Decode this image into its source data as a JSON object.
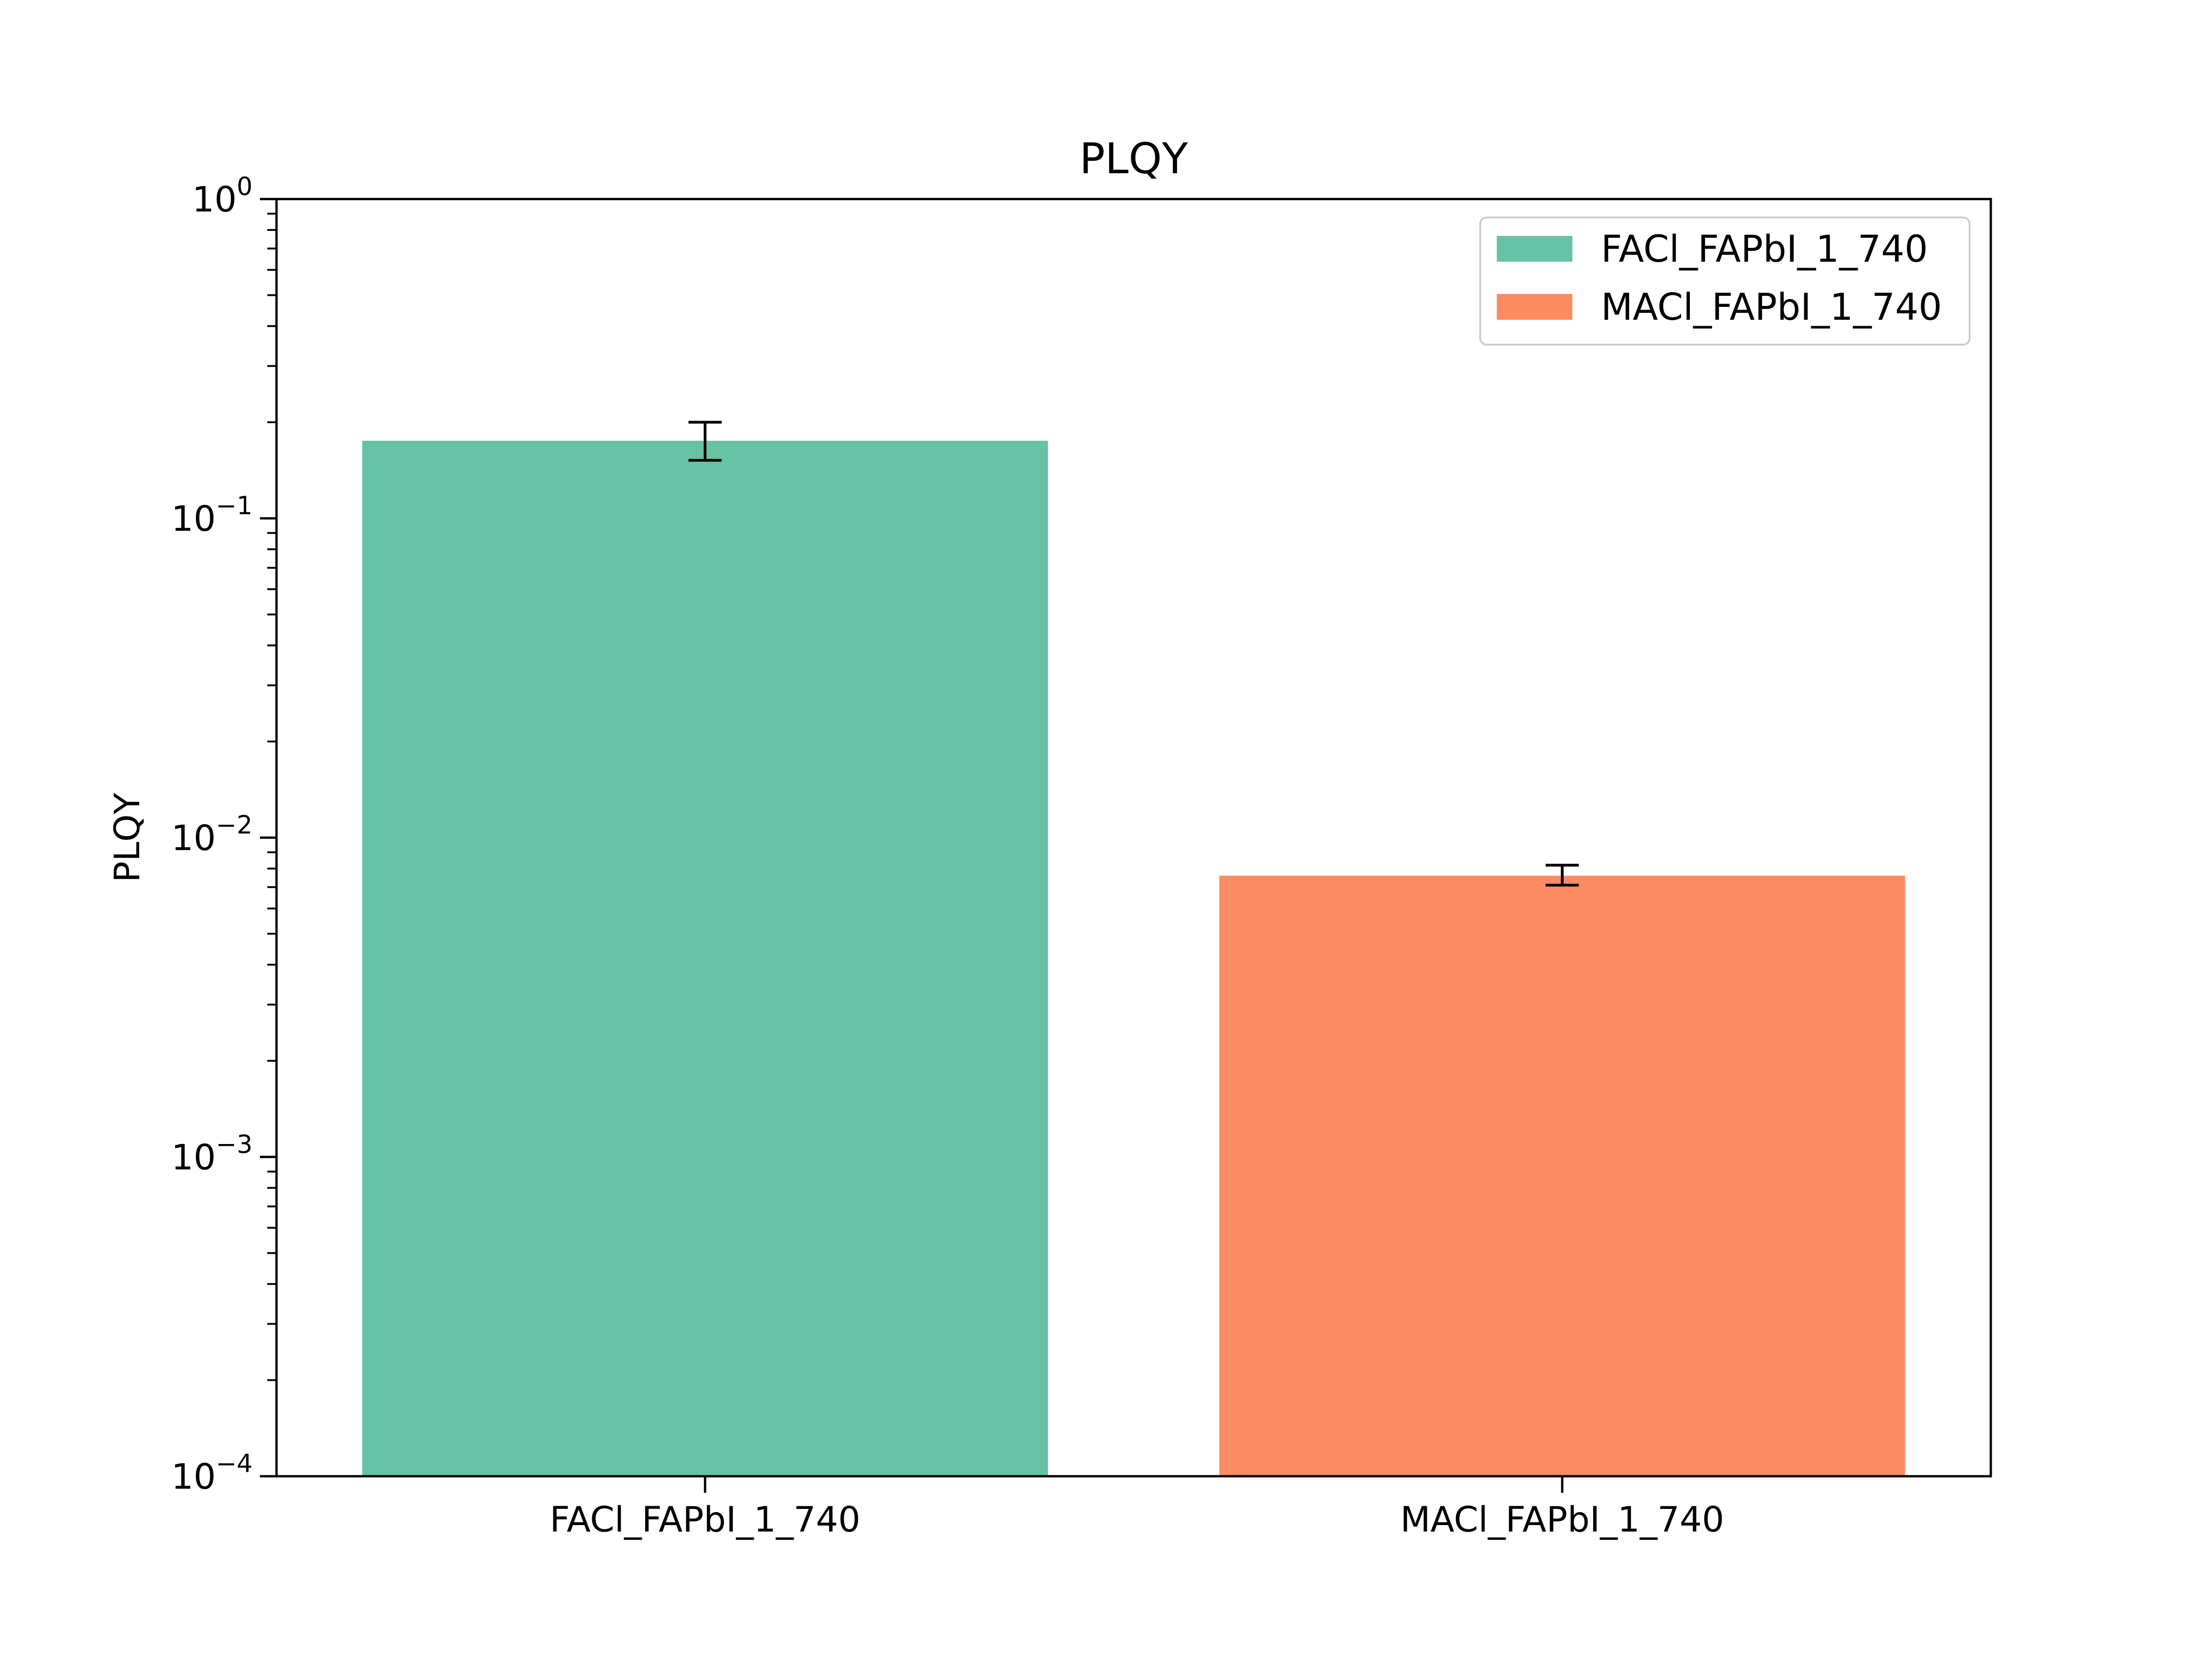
{
  "chart_data": {
    "type": "bar",
    "title": "PLQY",
    "xlabel": "",
    "ylabel": "PLQY",
    "yscale": "log",
    "ylim": [
      0.0001,
      1
    ],
    "yticks": [
      {
        "value": 0.0001,
        "base": "10",
        "exp": "−4"
      },
      {
        "value": 0.001,
        "base": "10",
        "exp": "−3"
      },
      {
        "value": 0.01,
        "base": "10",
        "exp": "−2"
      },
      {
        "value": 0.1,
        "base": "10",
        "exp": "−1"
      },
      {
        "value": 1,
        "base": "10",
        "exp": "0"
      }
    ],
    "categories": [
      "FACl_FAPbI_1_740",
      "MACl_FAPbI_1_740"
    ],
    "values": [
      0.175,
      0.0076
    ],
    "errors": [
      {
        "low": 0.152,
        "high": 0.2
      },
      {
        "low": 0.0071,
        "high": 0.0082
      }
    ],
    "colors": [
      "#66c2a5",
      "#fc8d62"
    ],
    "legend": {
      "placement": "top-right",
      "entries": [
        "FACl_FAPbI_1_740",
        "MACl_FAPbI_1_740"
      ]
    },
    "grid": false
  }
}
